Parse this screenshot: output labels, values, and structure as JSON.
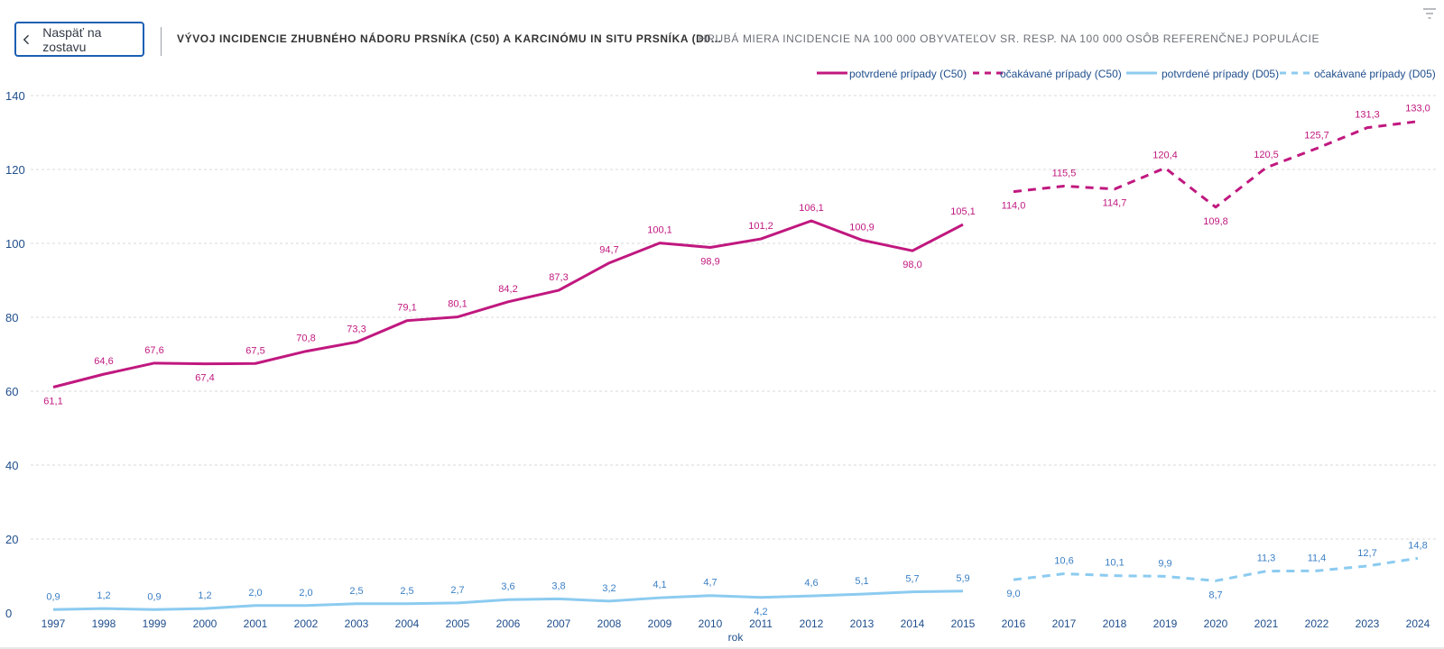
{
  "header": {
    "back_label": "Naspäť na zostavu",
    "title": "VÝVOJ INCIDENCIE ZHUBNÉHO NÁDORU PRSNÍKA (C50) A KARCINÓMU IN SITU PRSNÍKA (D0...",
    "subtitle": "HRUBÁ MIERA INCIDENCIE NA 100 000 OBYVATEĽOV SR. RESP. NA 100 000 OSÔB REFERENČNEJ POPULÁCIE"
  },
  "icons": {
    "back": "chevron-left-icon",
    "filter": "filter-icon"
  },
  "colors": {
    "c50": "#c0187f",
    "d05": "#8ccbf0",
    "d05_label": "#3b7fc4",
    "axis_text": "#1f4e8c",
    "grid": "#d9d9d9"
  },
  "chart_data": {
    "type": "line",
    "title": "VÝVOJ INCIDENCIE ZHUBNÉHO NÁDORU PRSNÍKA (C50) A KARCINÓMU IN SITU PRSNÍKA (D0...",
    "xlabel": "rok",
    "ylabel": "",
    "ylim": [
      0,
      140
    ],
    "yticks": [
      0,
      20,
      40,
      60,
      80,
      100,
      120,
      140
    ],
    "grid": true,
    "legend_position": "top-right",
    "x": [
      1997,
      1998,
      1999,
      2000,
      2001,
      2002,
      2003,
      2004,
      2005,
      2006,
      2007,
      2008,
      2009,
      2010,
      2011,
      2012,
      2013,
      2014,
      2015,
      2016,
      2017,
      2018,
      2019,
      2020,
      2021,
      2022,
      2023,
      2024
    ],
    "series": [
      {
        "name": "potvrdené prípady (C50)",
        "style": "solid",
        "color": "#c0187f",
        "x": [
          1997,
          1998,
          1999,
          2000,
          2001,
          2002,
          2003,
          2004,
          2005,
          2006,
          2007,
          2008,
          2009,
          2010,
          2011,
          2012,
          2013,
          2014,
          2015
        ],
        "values": [
          61.1,
          64.6,
          67.6,
          67.4,
          67.5,
          70.8,
          73.3,
          79.1,
          80.1,
          84.2,
          87.3,
          94.7,
          100.1,
          98.9,
          101.2,
          106.1,
          100.9,
          98.0,
          105.1
        ],
        "labels": [
          "61,1",
          "64,6",
          "67,6",
          "67,4",
          "67,5",
          "70,8",
          "73,3",
          "79,1",
          "80,1",
          "84,2",
          "87,3",
          "94,7",
          "100,1",
          "98,9",
          "101,2",
          "106,1",
          "100,9",
          "98,0",
          "105,1"
        ]
      },
      {
        "name": "očakávané prípady (C50)",
        "style": "dashed",
        "color": "#c0187f",
        "x": [
          2016,
          2017,
          2018,
          2019,
          2020,
          2021,
          2022,
          2023,
          2024
        ],
        "values": [
          114.0,
          115.5,
          114.7,
          120.4,
          109.8,
          120.5,
          125.7,
          131.3,
          133.0
        ],
        "labels": [
          "114,0",
          "115,5",
          "114,7",
          "120,4",
          "109,8",
          "120,5",
          "125,7",
          "131,3",
          "133,0"
        ]
      },
      {
        "name": "potvrdené prípady (D05)",
        "style": "solid",
        "color": "#8ccbf0",
        "x": [
          1997,
          1998,
          1999,
          2000,
          2001,
          2002,
          2003,
          2004,
          2005,
          2006,
          2007,
          2008,
          2009,
          2010,
          2011,
          2012,
          2013,
          2014,
          2015
        ],
        "values": [
          0.9,
          1.2,
          0.9,
          1.2,
          2.0,
          2.0,
          2.5,
          2.5,
          2.7,
          3.6,
          3.8,
          3.2,
          4.1,
          4.7,
          4.2,
          4.6,
          5.1,
          5.7,
          5.9
        ],
        "labels": [
          "0,9",
          "1,2",
          "0,9",
          "1,2",
          "2,0",
          "2,0",
          "2,5",
          "2,5",
          "2,7",
          "3,6",
          "3,8",
          "3,2",
          "4,1",
          "4,7",
          "4,2",
          "4,6",
          "5,1",
          "5,7",
          "5,9"
        ]
      },
      {
        "name": "očakávané prípady (D05)",
        "style": "dashed",
        "color": "#8ccbf0",
        "x": [
          2016,
          2017,
          2018,
          2019,
          2020,
          2021,
          2022,
          2023,
          2024
        ],
        "values": [
          9.0,
          10.6,
          10.1,
          9.9,
          8.7,
          11.3,
          11.4,
          12.7,
          14.8
        ],
        "labels": [
          "9,0",
          "10,6",
          "10,1",
          "9,9",
          "8,7",
          "11,3",
          "11,4",
          "12,7",
          "14,8"
        ]
      }
    ]
  }
}
